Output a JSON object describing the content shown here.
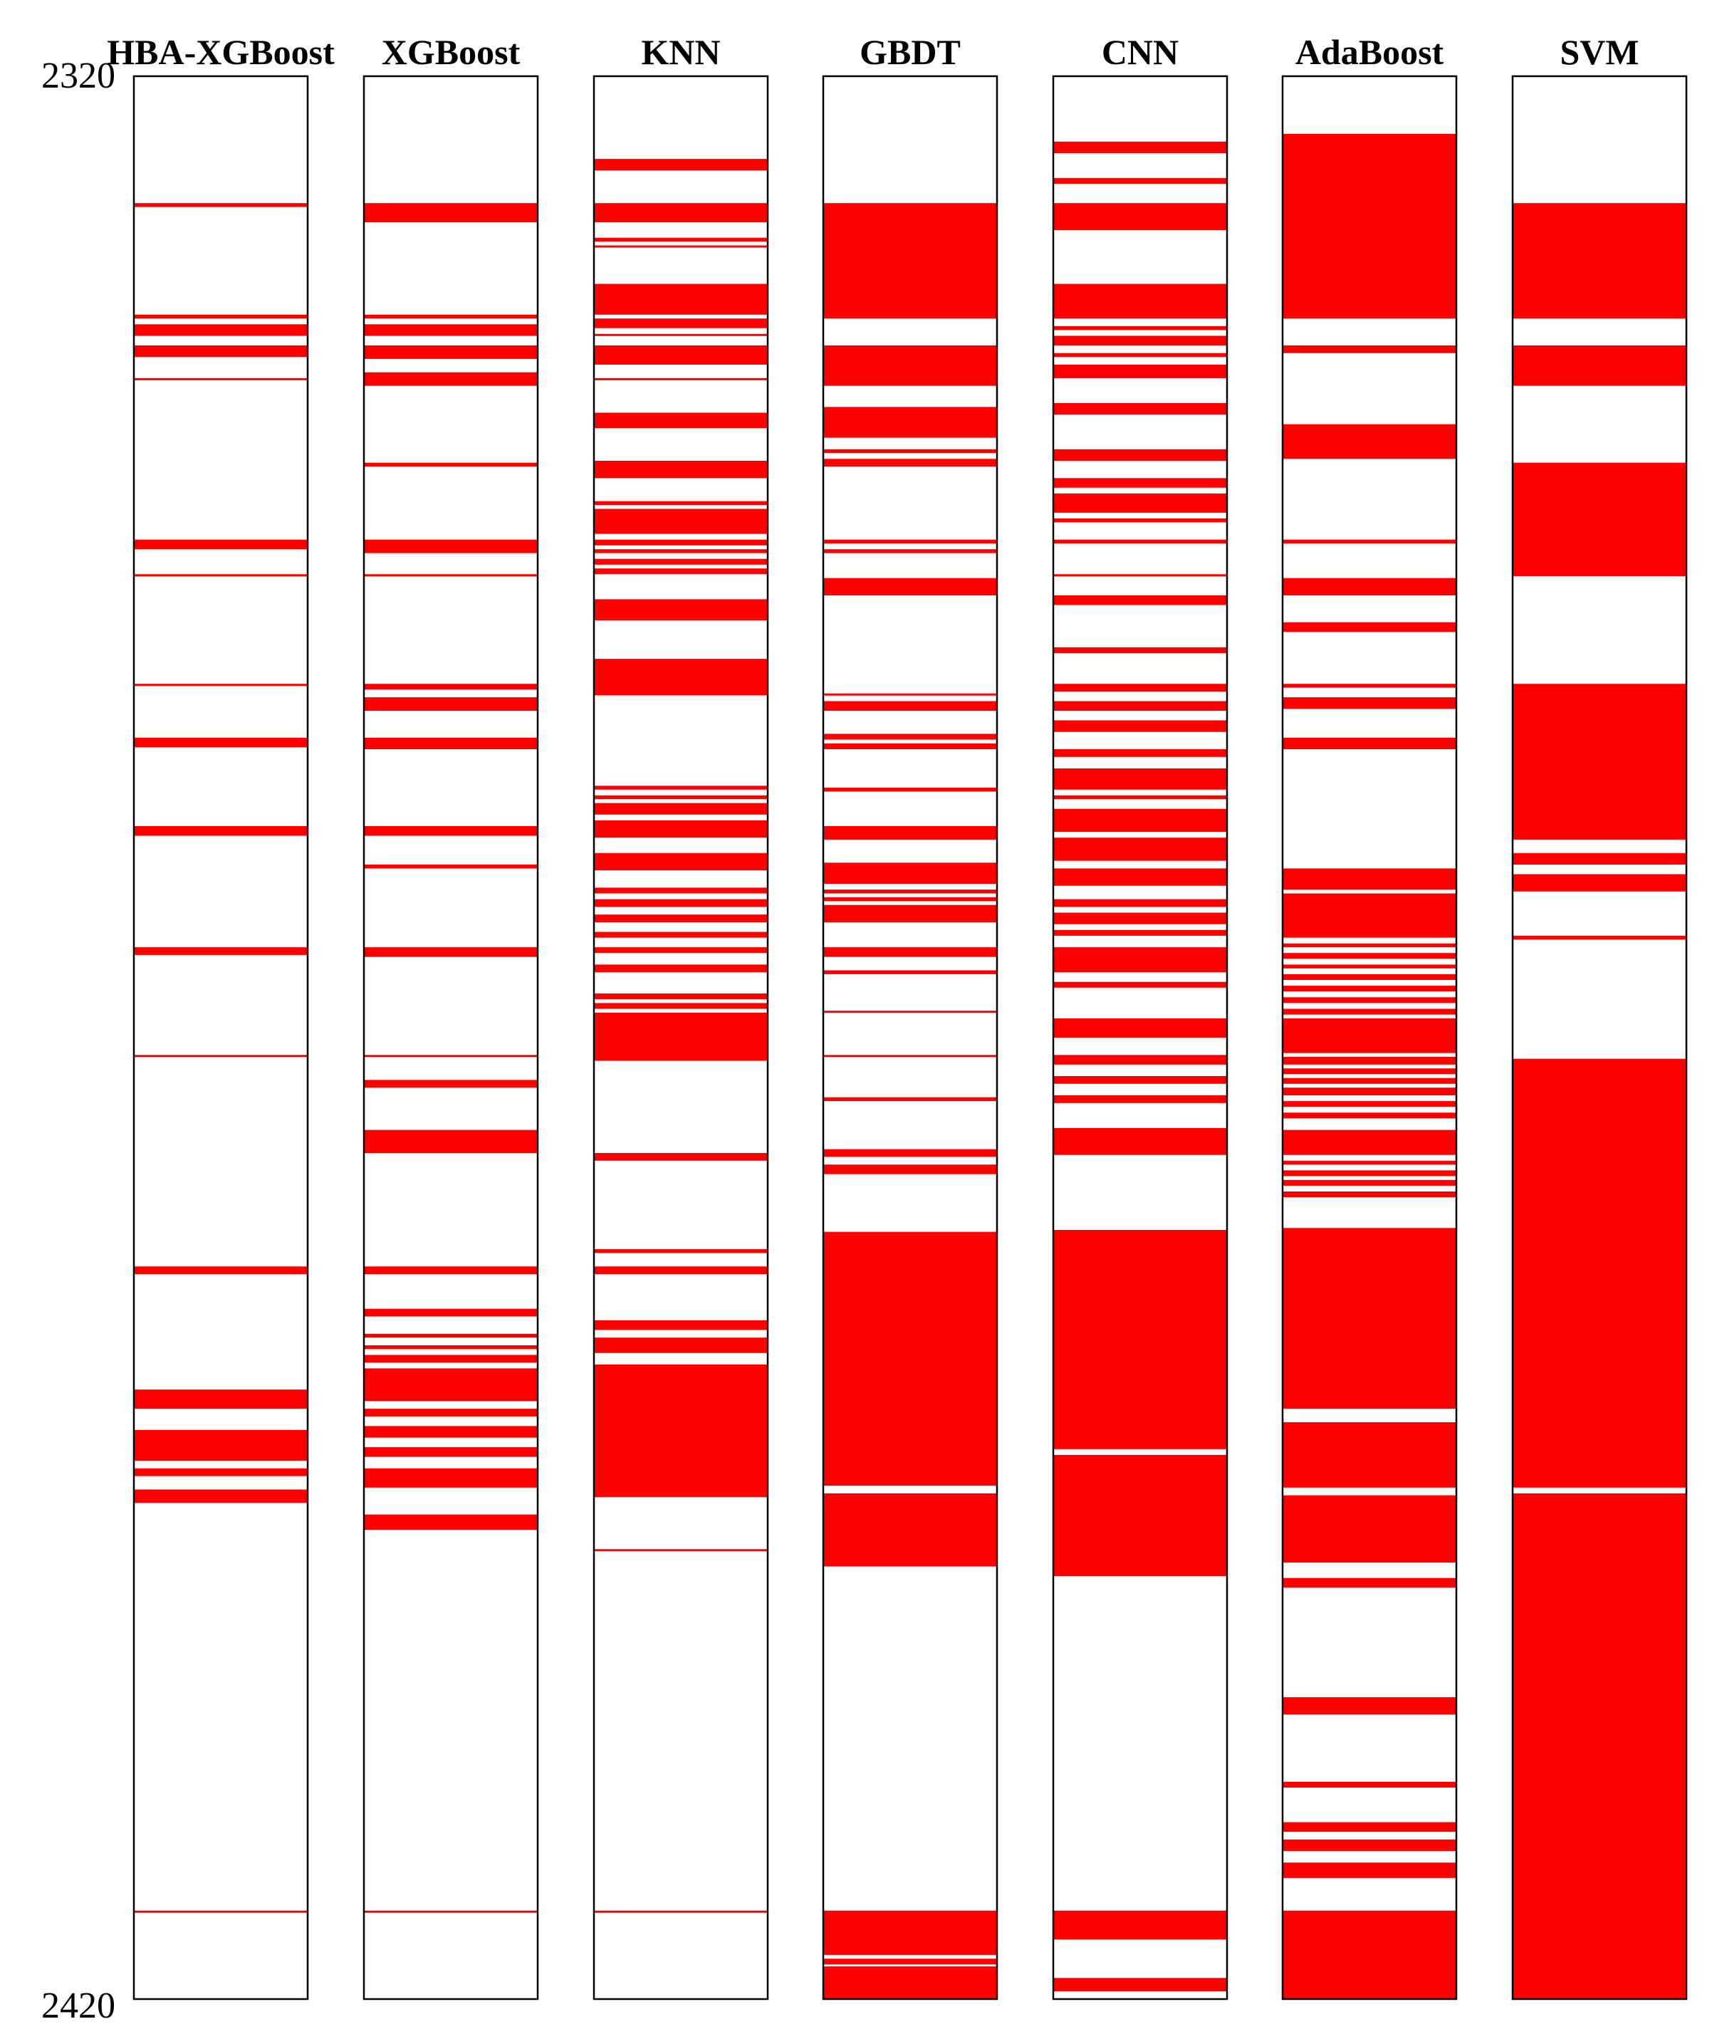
{
  "chart_data": {
    "type": "heatmap",
    "description_axis": "vertical depth axis",
    "y_ticks": [
      "2320",
      "2420"
    ],
    "ylim": [
      2320,
      2420
    ],
    "band_color": "#ff0000",
    "background_color": "#ffffff",
    "series": [
      {
        "name": "HBA-XGBoost",
        "bands": [
          [
            326.6,
            326.8
          ],
          [
            332.4,
            332.6
          ],
          [
            332.9,
            333.5
          ],
          [
            334.0,
            334.6
          ],
          [
            335.7,
            335.8
          ],
          [
            344.1,
            344.6
          ],
          [
            345.9,
            346.0
          ],
          [
            351.6,
            351.7
          ],
          [
            354.4,
            354.9
          ],
          [
            359.0,
            359.5
          ],
          [
            365.3,
            365.7
          ],
          [
            370.9,
            371.0
          ],
          [
            381.9,
            382.3
          ],
          [
            388.3,
            389.3
          ],
          [
            390.4,
            392.0
          ],
          [
            392.4,
            392.8
          ],
          [
            393.5,
            394.2
          ],
          [
            415.4,
            415.5
          ]
        ]
      },
      {
        "name": "XGBoost",
        "bands": [
          [
            326.6,
            327.6
          ],
          [
            332.4,
            332.6
          ],
          [
            332.9,
            333.5
          ],
          [
            334.0,
            334.7
          ],
          [
            335.4,
            336.1
          ],
          [
            340.1,
            340.3
          ],
          [
            344.1,
            344.8
          ],
          [
            345.9,
            346.0
          ],
          [
            351.6,
            351.9
          ],
          [
            352.3,
            353.0
          ],
          [
            354.4,
            355.0
          ],
          [
            359.0,
            359.5
          ],
          [
            361.0,
            361.2
          ],
          [
            365.3,
            365.8
          ],
          [
            370.9,
            371.0
          ],
          [
            372.2,
            372.6
          ],
          [
            374.8,
            376.0
          ],
          [
            381.9,
            382.3
          ],
          [
            384.1,
            384.5
          ],
          [
            385.4,
            385.6
          ],
          [
            386.0,
            386.2
          ],
          [
            386.5,
            386.9
          ],
          [
            387.2,
            388.9
          ],
          [
            389.3,
            389.7
          ],
          [
            390.2,
            390.8
          ],
          [
            391.3,
            391.8
          ],
          [
            392.4,
            393.4
          ],
          [
            394.8,
            395.6
          ],
          [
            415.4,
            415.5
          ]
        ]
      },
      {
        "name": "KNN",
        "bands": [
          [
            324.3,
            324.9
          ],
          [
            326.6,
            327.6
          ],
          [
            328.4,
            328.6
          ],
          [
            328.8,
            328.9
          ],
          [
            330.8,
            332.4
          ],
          [
            332.6,
            333.1
          ],
          [
            333.4,
            333.5
          ],
          [
            334.0,
            335.0
          ],
          [
            335.7,
            335.8
          ],
          [
            337.5,
            338.3
          ],
          [
            340.0,
            340.9
          ],
          [
            342.1,
            342.3
          ],
          [
            342.5,
            343.8
          ],
          [
            344.1,
            344.4
          ],
          [
            344.6,
            344.8
          ],
          [
            345.1,
            345.4
          ],
          [
            345.6,
            345.9
          ],
          [
            347.2,
            348.3
          ],
          [
            350.3,
            352.2
          ],
          [
            356.9,
            357.1
          ],
          [
            357.4,
            357.6
          ],
          [
            357.8,
            358.4
          ],
          [
            358.7,
            359.6
          ],
          [
            360.4,
            361.3
          ],
          [
            362.2,
            362.5
          ],
          [
            362.8,
            363.2
          ],
          [
            363.6,
            364.0
          ],
          [
            364.5,
            364.8
          ],
          [
            365.3,
            365.6
          ],
          [
            366.2,
            366.6
          ],
          [
            367.7,
            368.0
          ],
          [
            368.2,
            368.5
          ],
          [
            368.7,
            371.2
          ],
          [
            376.0,
            376.4
          ],
          [
            381.0,
            381.2
          ],
          [
            381.9,
            382.3
          ],
          [
            384.7,
            385.2
          ],
          [
            385.6,
            386.4
          ],
          [
            387.0,
            393.9
          ],
          [
            396.6,
            396.7
          ],
          [
            415.4,
            415.5
          ]
        ]
      },
      {
        "name": "GBDT",
        "bands": [
          [
            326.6,
            332.6
          ],
          [
            334.0,
            336.1
          ],
          [
            337.2,
            338.8
          ],
          [
            339.4,
            339.6
          ],
          [
            339.9,
            340.3
          ],
          [
            344.1,
            344.3
          ],
          [
            344.6,
            344.8
          ],
          [
            346.1,
            347.0
          ],
          [
            352.1,
            352.2
          ],
          [
            352.5,
            353.0
          ],
          [
            354.2,
            354.5
          ],
          [
            354.7,
            355.0
          ],
          [
            357.0,
            357.2
          ],
          [
            359.0,
            359.7
          ],
          [
            360.9,
            362.0
          ],
          [
            362.3,
            362.5
          ],
          [
            362.7,
            362.9
          ],
          [
            363.1,
            364.0
          ],
          [
            365.3,
            365.8
          ],
          [
            366.5,
            366.7
          ],
          [
            368.6,
            368.7
          ],
          [
            370.9,
            371.0
          ],
          [
            373.1,
            373.3
          ],
          [
            375.8,
            376.2
          ],
          [
            376.6,
            377.1
          ],
          [
            380.1,
            393.3
          ],
          [
            393.7,
            397.5
          ],
          [
            415.4,
            417.7
          ],
          [
            417.9,
            418.2
          ],
          [
            418.3,
            420.0
          ]
        ]
      },
      {
        "name": "CNN",
        "bands": [
          [
            323.4,
            324.0
          ],
          [
            325.3,
            325.6
          ],
          [
            326.6,
            328.0
          ],
          [
            330.8,
            332.6
          ],
          [
            333.0,
            333.2
          ],
          [
            333.5,
            334.0
          ],
          [
            334.4,
            334.6
          ],
          [
            335.0,
            335.7
          ],
          [
            337.0,
            337.6
          ],
          [
            339.4,
            340.0
          ],
          [
            340.9,
            341.4
          ],
          [
            341.7,
            342.7
          ],
          [
            343.0,
            343.2
          ],
          [
            344.1,
            344.3
          ],
          [
            345.9,
            346.0
          ],
          [
            347.0,
            347.5
          ],
          [
            349.7,
            350.0
          ],
          [
            351.6,
            352.0
          ],
          [
            352.5,
            353.0
          ],
          [
            353.5,
            354.1
          ],
          [
            355.0,
            355.4
          ],
          [
            356.0,
            357.1
          ],
          [
            357.4,
            357.6
          ],
          [
            358.1,
            359.3
          ],
          [
            359.6,
            360.8
          ],
          [
            361.2,
            362.1
          ],
          [
            362.8,
            363.2
          ],
          [
            363.5,
            364.1
          ],
          [
            364.4,
            364.7
          ],
          [
            365.3,
            366.6
          ],
          [
            367.1,
            367.4
          ],
          [
            369.0,
            370.0
          ],
          [
            370.9,
            371.0
          ],
          [
            371.0,
            371.4
          ],
          [
            372.0,
            372.4
          ],
          [
            373.0,
            373.4
          ],
          [
            374.7,
            376.1
          ],
          [
            380.0,
            391.4
          ],
          [
            391.7,
            398.0
          ],
          [
            415.4,
            416.9
          ],
          [
            418.9,
            419.6
          ]
        ]
      },
      {
        "name": "AdaBoost",
        "bands": [
          [
            323.0,
            332.6
          ],
          [
            334.0,
            334.4
          ],
          [
            338.1,
            339.9
          ],
          [
            344.1,
            344.3
          ],
          [
            346.1,
            347.0
          ],
          [
            348.4,
            348.9
          ],
          [
            351.6,
            351.8
          ],
          [
            352.3,
            352.9
          ],
          [
            354.4,
            355.0
          ],
          [
            361.2,
            362.3
          ],
          [
            362.5,
            364.8
          ],
          [
            365.1,
            365.3
          ],
          [
            365.6,
            365.9
          ],
          [
            366.2,
            366.4
          ],
          [
            366.7,
            367.0
          ],
          [
            367.3,
            367.6
          ],
          [
            367.9,
            368.2
          ],
          [
            368.5,
            368.8
          ],
          [
            369.0,
            370.8
          ],
          [
            371.0,
            371.4
          ],
          [
            371.6,
            371.9
          ],
          [
            372.1,
            372.4
          ],
          [
            372.6,
            373.0
          ],
          [
            373.3,
            373.6
          ],
          [
            373.9,
            374.2
          ],
          [
            374.8,
            376.1
          ],
          [
            376.4,
            376.6
          ],
          [
            376.9,
            377.2
          ],
          [
            377.4,
            377.7
          ],
          [
            378.0,
            378.3
          ],
          [
            379.9,
            389.3
          ],
          [
            390.0,
            393.4
          ],
          [
            393.8,
            397.3
          ],
          [
            398.1,
            398.6
          ],
          [
            404.3,
            405.2
          ],
          [
            408.7,
            409.0
          ],
          [
            410.8,
            411.3
          ],
          [
            411.7,
            412.3
          ],
          [
            412.9,
            413.7
          ],
          [
            415.4,
            420.0
          ]
        ]
      },
      {
        "name": "SVM",
        "bands": [
          [
            326.6,
            332.6
          ],
          [
            334.0,
            336.1
          ],
          [
            340.1,
            346.0
          ],
          [
            351.6,
            359.7
          ],
          [
            360.4,
            361.0
          ],
          [
            361.5,
            362.4
          ],
          [
            364.7,
            364.9
          ],
          [
            371.1,
            393.4
          ],
          [
            393.7,
            420.0
          ]
        ]
      }
    ]
  }
}
